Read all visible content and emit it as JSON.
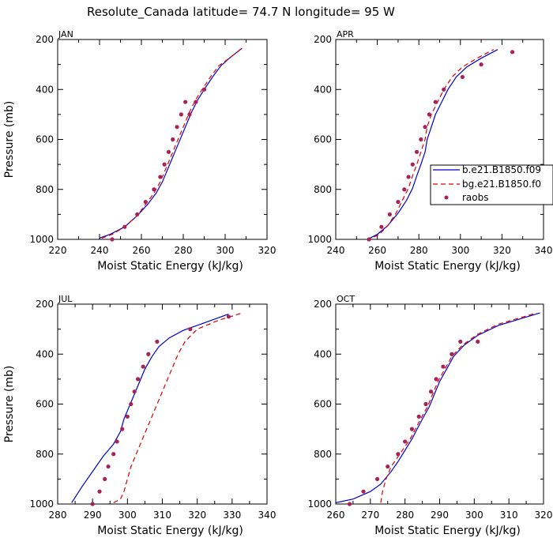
{
  "title": "Resolute_Canada  latitude= 74.7 N longitude= 95 W",
  "legend": {
    "placement": "right of APR panel",
    "entries": [
      {
        "label": "b.e21.B1850.f09",
        "color": "#0000cc",
        "style": "solid"
      },
      {
        "label": "bg.e21.B1850.f0",
        "color": "#dd0000",
        "style": "dashed"
      },
      {
        "label": "raobs",
        "color": "#aa2255",
        "style": "dot"
      }
    ]
  },
  "chart_data": [
    {
      "type": "line",
      "panel": "JAN",
      "xlabel": "Moist Static Energy (kJ/kg)",
      "ylabel": "Pressure (mb)",
      "xlim": [
        220,
        320
      ],
      "ylim": [
        1000,
        200
      ],
      "xticks": [
        220,
        240,
        260,
        280,
        300,
        320
      ],
      "yticks": [
        200,
        400,
        600,
        800,
        1000
      ],
      "series": [
        {
          "name": "b.e21.B1850.f09",
          "color": "#0000cc",
          "dash": "",
          "points": [
            [
              240,
              995
            ],
            [
              245,
              980
            ],
            [
              252,
              950
            ],
            [
              258,
              905
            ],
            [
              263,
              860
            ],
            [
              267,
              815
            ],
            [
              270,
              770
            ],
            [
              272,
              730
            ],
            [
              274,
              690
            ],
            [
              276,
              650
            ],
            [
              278,
              610
            ],
            [
              280,
              570
            ],
            [
              282,
              530
            ],
            [
              284,
              490
            ],
            [
              287,
              440
            ],
            [
              290,
              400
            ],
            [
              294,
              350
            ],
            [
              298,
              305
            ],
            [
              302,
              275
            ],
            [
              308,
              235
            ]
          ]
        },
        {
          "name": "bg.e21.B1850.f0",
          "color": "#dd0000",
          "dash": "6,4",
          "points": [
            [
              241,
              995
            ],
            [
              246,
              980
            ],
            [
              252,
              950
            ],
            [
              258,
              905
            ],
            [
              262,
              860
            ],
            [
              266,
              815
            ],
            [
              269,
              770
            ],
            [
              271,
              730
            ],
            [
              273,
              690
            ],
            [
              275,
              650
            ],
            [
              277,
              610
            ],
            [
              279,
              570
            ],
            [
              281,
              530
            ],
            [
              283,
              490
            ],
            [
              286,
              440
            ],
            [
              289,
              400
            ],
            [
              293,
              350
            ],
            [
              297,
              305
            ],
            [
              302,
              275
            ],
            [
              308,
              235
            ]
          ]
        },
        {
          "name": "raobs",
          "color": "#aa2255",
          "type": "scatter",
          "points": [
            [
              246,
              1000
            ],
            [
              252,
              950
            ],
            [
              258,
              900
            ],
            [
              262,
              850
            ],
            [
              266,
              800
            ],
            [
              269,
              750
            ],
            [
              271,
              700
            ],
            [
              273,
              650
            ],
            [
              275,
              600
            ],
            [
              277,
              550
            ],
            [
              279,
              500
            ],
            [
              281,
              450
            ],
            [
              286,
              450
            ],
            [
              290,
              400
            ],
            [
              283,
              500
            ]
          ]
        }
      ]
    },
    {
      "type": "line",
      "panel": "APR",
      "xlabel": "Moist Static Energy (kJ/kg)",
      "ylabel": "",
      "xlim": [
        240,
        340
      ],
      "ylim": [
        1000,
        200
      ],
      "xticks": [
        240,
        260,
        280,
        300,
        320,
        340
      ],
      "yticks": [
        200,
        400,
        600,
        800,
        1000
      ],
      "series": [
        {
          "name": "b.e21.B1850.f09",
          "color": "#0000cc",
          "dash": "",
          "points": [
            [
              254,
              1005
            ],
            [
              260,
              980
            ],
            [
              265,
              945
            ],
            [
              270,
              895
            ],
            [
              274,
              845
            ],
            [
              277,
              795
            ],
            [
              279,
              745
            ],
            [
              281,
              700
            ],
            [
              283,
              650
            ],
            [
              284,
              600
            ],
            [
              286,
              550
            ],
            [
              288,
              500
            ],
            [
              291,
              450
            ],
            [
              294,
              400
            ],
            [
              298,
              350
            ],
            [
              303,
              310
            ],
            [
              310,
              275
            ],
            [
              318,
              240
            ]
          ]
        },
        {
          "name": "bg.e21.B1850.f0",
          "color": "#dd0000",
          "dash": "6,4",
          "points": [
            [
              255,
              1005
            ],
            [
              261,
              980
            ],
            [
              265,
              945
            ],
            [
              269,
              895
            ],
            [
              272,
              845
            ],
            [
              275,
              795
            ],
            [
              277,
              745
            ],
            [
              279,
              700
            ],
            [
              281,
              650
            ],
            [
              283,
              600
            ],
            [
              284,
              550
            ],
            [
              286,
              500
            ],
            [
              289,
              450
            ],
            [
              292,
              400
            ],
            [
              296,
              350
            ],
            [
              301,
              310
            ],
            [
              308,
              275
            ],
            [
              316,
              240
            ]
          ]
        },
        {
          "name": "raobs",
          "color": "#aa2255",
          "type": "scatter",
          "points": [
            [
              256,
              1000
            ],
            [
              262,
              950
            ],
            [
              266,
              900
            ],
            [
              270,
              850
            ],
            [
              273,
              800
            ],
            [
              275,
              750
            ],
            [
              277,
              700
            ],
            [
              279,
              650
            ],
            [
              281,
              600
            ],
            [
              283,
              550
            ],
            [
              285,
              500
            ],
            [
              288,
              450
            ],
            [
              292,
              400
            ],
            [
              301,
              350
            ],
            [
              310,
              300
            ],
            [
              325,
              250
            ]
          ]
        }
      ]
    },
    {
      "type": "line",
      "panel": "JUL",
      "xlabel": "Moist Static Energy (kJ/kg)",
      "ylabel": "Pressure (mb)",
      "xlim": [
        280,
        340
      ],
      "ylim": [
        1000,
        200
      ],
      "xticks": [
        280,
        290,
        300,
        310,
        320,
        330,
        340
      ],
      "yticks": [
        200,
        400,
        600,
        800,
        1000
      ],
      "series": [
        {
          "name": "b.e21.B1850.f09",
          "color": "#0000cc",
          "dash": "",
          "points": [
            [
              284,
              995
            ],
            [
              287,
              930
            ],
            [
              290,
              870
            ],
            [
              293,
              810
            ],
            [
              296,
              760
            ],
            [
              298,
              710
            ],
            [
              299,
              660
            ],
            [
              300.5,
              610
            ],
            [
              302,
              560
            ],
            [
              303.5,
              510
            ],
            [
              305,
              460
            ],
            [
              307,
              410
            ],
            [
              309,
              370
            ],
            [
              312,
              335
            ],
            [
              316,
              305
            ],
            [
              322,
              275
            ],
            [
              329,
              240
            ]
          ]
        },
        {
          "name": "bg.e21.B1850.f0",
          "color": "#dd0000",
          "dash": "6,4",
          "points": [
            [
              296,
              995
            ],
            [
              298,
              980
            ],
            [
              299,
              950
            ],
            [
              300,
              900
            ],
            [
              301,
              850
            ],
            [
              302.5,
              800
            ],
            [
              304,
              750
            ],
            [
              305.5,
              700
            ],
            [
              307,
              650
            ],
            [
              308.5,
              600
            ],
            [
              310,
              550
            ],
            [
              311.5,
              500
            ],
            [
              313,
              450
            ],
            [
              314.5,
              400
            ],
            [
              316.5,
              350
            ],
            [
              320,
              300
            ],
            [
              326,
              265
            ],
            [
              333,
              235
            ]
          ]
        },
        {
          "name": "raobs",
          "color": "#aa2255",
          "type": "scatter",
          "points": [
            [
              290,
              1000
            ],
            [
              292,
              950
            ],
            [
              293.5,
              900
            ],
            [
              294.5,
              850
            ],
            [
              296,
              800
            ],
            [
              297,
              750
            ],
            [
              298.5,
              700
            ],
            [
              300,
              650
            ],
            [
              301,
              600
            ],
            [
              302,
              550
            ],
            [
              303,
              500
            ],
            [
              304.5,
              450
            ],
            [
              306,
              400
            ],
            [
              308.5,
              350
            ],
            [
              318,
              300
            ],
            [
              329,
              250
            ]
          ]
        }
      ]
    },
    {
      "type": "line",
      "panel": "OCT",
      "xlabel": "Moist Static Energy (kJ/kg)",
      "ylabel": "",
      "xlim": [
        260,
        320
      ],
      "ylim": [
        1000,
        200
      ],
      "xticks": [
        260,
        270,
        280,
        290,
        300,
        310,
        320
      ],
      "yticks": [
        200,
        400,
        600,
        800,
        1000
      ],
      "series": [
        {
          "name": "b.e21.B1850.f09",
          "color": "#0000cc",
          "dash": "",
          "points": [
            [
              260,
              995
            ],
            [
              265,
              980
            ],
            [
              270,
              950
            ],
            [
              273,
              920
            ],
            [
              276,
              870
            ],
            [
              278,
              830
            ],
            [
              280,
              785
            ],
            [
              282,
              740
            ],
            [
              283.5,
              700
            ],
            [
              285,
              660
            ],
            [
              287,
              610
            ],
            [
              288.5,
              560
            ],
            [
              290,
              510
            ],
            [
              292,
              460
            ],
            [
              294,
              410
            ],
            [
              297,
              365
            ],
            [
              301,
              325
            ],
            [
              307,
              285
            ],
            [
              319,
              235
            ]
          ]
        },
        {
          "name": "bg.e21.B1850.f0",
          "color": "#dd0000",
          "dash": "6,4",
          "points": [
            [
              273,
              995
            ],
            [
              273.5,
              950
            ],
            [
              274.5,
              900
            ],
            [
              276,
              850
            ],
            [
              277.5,
              820
            ],
            [
              279.5,
              780
            ],
            [
              281.5,
              740
            ],
            [
              283,
              700
            ],
            [
              284.5,
              660
            ],
            [
              286.5,
              610
            ],
            [
              288,
              560
            ],
            [
              289.5,
              510
            ],
            [
              291.5,
              460
            ],
            [
              293.5,
              410
            ],
            [
              296.5,
              365
            ],
            [
              301,
              320
            ],
            [
              307,
              280
            ],
            [
              318,
              235
            ]
          ]
        },
        {
          "name": "raobs",
          "color": "#aa2255",
          "type": "scatter",
          "points": [
            [
              264,
              1000
            ],
            [
              268,
              950
            ],
            [
              272,
              900
            ],
            [
              275,
              850
            ],
            [
              278,
              800
            ],
            [
              280,
              750
            ],
            [
              282,
              700
            ],
            [
              284,
              650
            ],
            [
              286,
              600
            ],
            [
              287.5,
              550
            ],
            [
              289,
              500
            ],
            [
              291,
              450
            ],
            [
              293.5,
              400
            ],
            [
              296,
              350
            ],
            [
              301,
              350
            ]
          ]
        }
      ]
    }
  ]
}
